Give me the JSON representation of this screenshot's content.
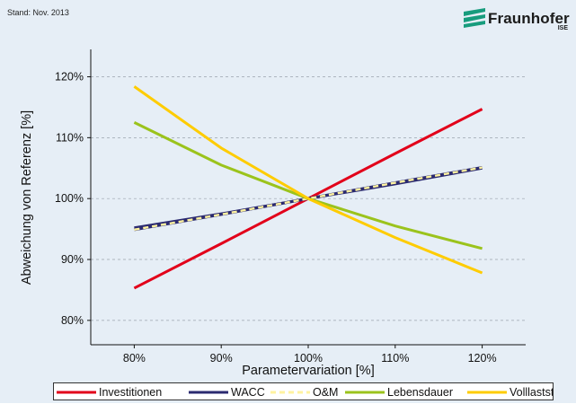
{
  "stand": "Stand: Nov. 2013",
  "logo": {
    "name": "Fraunhofer",
    "sub": "ISE",
    "color": "#179c7d"
  },
  "chart_data": {
    "type": "line",
    "xlabel": "Parametervariation [%]",
    "ylabel": "Abweichung von Referenz [%]",
    "x": [
      80,
      90,
      100,
      110,
      120
    ],
    "x_tick_labels": [
      "80%",
      "90%",
      "100%",
      "110%",
      "120%"
    ],
    "xlim": [
      75,
      125
    ],
    "y_ticks": [
      80,
      90,
      100,
      110,
      120
    ],
    "y_tick_labels": [
      "80%",
      "90%",
      "100%",
      "110%",
      "120%"
    ],
    "ylim": [
      76,
      124.5
    ],
    "grid": "horizontal dashed",
    "legend_position": "bottom",
    "series": [
      {
        "name": "Investitionen",
        "color": "#e2001a",
        "dashed": false,
        "values": [
          85.3,
          92.6,
          100.0,
          107.4,
          114.7
        ]
      },
      {
        "name": "WACC",
        "color": "#2b2a70",
        "dashed": false,
        "values": [
          95.2,
          97.5,
          100.0,
          102.4,
          105.0
        ]
      },
      {
        "name": "O&M",
        "color": "#fff3a0",
        "dashed": true,
        "values": [
          94.9,
          97.4,
          100.0,
          102.6,
          105.1
        ]
      },
      {
        "name": "Lebensdauer",
        "color": "#9bc31c",
        "dashed": false,
        "values": [
          112.5,
          105.5,
          100.0,
          95.5,
          91.8
        ]
      },
      {
        "name": "Volllaststunden",
        "color": "#fecc00",
        "dashed": false,
        "values": [
          118.4,
          108.3,
          100.0,
          93.6,
          87.8
        ]
      }
    ]
  }
}
